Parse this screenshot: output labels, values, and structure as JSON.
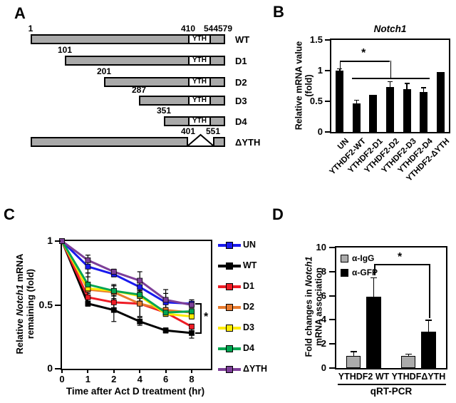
{
  "panel_labels": {
    "a": "A",
    "b": "B",
    "c": "C",
    "d": "D"
  },
  "panel_a": {
    "yth_label": "YTH",
    "bar_color": "#a9a9a9",
    "constructs": [
      {
        "name": "WT",
        "start": 1,
        "end": 579,
        "yth": [
          410,
          544
        ],
        "markers": [
          {
            "t": "1",
            "p": 1
          },
          {
            "t": "410",
            "p": 410
          },
          {
            "t": "544",
            "p": 544
          },
          {
            "t": "579",
            "p": 579
          }
        ]
      },
      {
        "name": "D1",
        "start": 101,
        "end": 579,
        "yth": [
          410,
          544
        ],
        "markers": [
          {
            "t": "101",
            "p": 101
          }
        ]
      },
      {
        "name": "D2",
        "start": 201,
        "end": 579,
        "yth": [
          410,
          544
        ],
        "markers": [
          {
            "t": "201",
            "p": 201
          }
        ]
      },
      {
        "name": "D3",
        "start": 287,
        "end": 579,
        "yth": [
          410,
          544
        ],
        "markers": [
          {
            "t": "287",
            "p": 287
          }
        ]
      },
      {
        "name": "D4",
        "start": 351,
        "end": 579,
        "yth": [
          410,
          544
        ],
        "markers": [
          {
            "t": "351",
            "p": 351
          }
        ]
      },
      {
        "name": "ΔYTH",
        "start": 1,
        "end": 579,
        "deletion": [
          401,
          551
        ],
        "markers": [
          {
            "t": "401",
            "p": 401
          },
          {
            "t": "551",
            "p": 551
          }
        ]
      }
    ]
  },
  "chart_data": [
    {
      "panel": "B",
      "type": "bar",
      "title": "Notch1",
      "ylabel": "Relative mRNA value (fold)",
      "categories": [
        "UN",
        "YTHDF2-WT",
        "YTHDF2-D1",
        "YTHDF2-D2",
        "YTHDF2-D3",
        "YTHDF2-D4",
        "YTHDF2-ΔYTH"
      ],
      "values": [
        1.0,
        0.46,
        0.61,
        0.73,
        0.7,
        0.65,
        0.98
      ],
      "errors": [
        0.03,
        0.06,
        0,
        0.09,
        0.09,
        0.07,
        0
      ],
      "ylim": [
        0,
        1.5
      ],
      "yticks": [
        0,
        0.5,
        1,
        1.5
      ],
      "bar_color": "#000000",
      "grid": false,
      "significance": {
        "symbol": "*",
        "compare": "UN vs YTHDF2 constructs"
      }
    },
    {
      "panel": "C",
      "type": "line",
      "xlabel": "Time after Act D treatment (hr)",
      "ylabel": "Relative Notch1 mRNA remaining (fold)",
      "x": [
        0,
        1,
        2,
        4,
        6,
        8
      ],
      "x_scale": "categorical",
      "ylim": [
        0,
        1
      ],
      "yticks": [
        0,
        0.5,
        1
      ],
      "legend_position": "right",
      "grid": false,
      "significance": {
        "symbol": "*"
      },
      "series": [
        {
          "name": "UN",
          "color": "#1a1aee",
          "values": [
            1,
            0.8,
            0.74,
            0.64,
            0.52,
            0.51
          ],
          "errors": [
            0,
            0.05,
            0.02,
            0.04,
            0.07,
            0.03
          ]
        },
        {
          "name": "WT",
          "color": "#000000",
          "values": [
            1,
            0.51,
            0.46,
            0.37,
            0.3,
            0.28
          ],
          "errors": [
            0,
            0.02,
            0.09,
            0.03,
            0.02,
            0.04
          ]
        },
        {
          "name": "D1",
          "color": "#ee1c25",
          "values": [
            1,
            0.56,
            0.52,
            0.51,
            0.44,
            0.33
          ],
          "errors": [
            0,
            0.05,
            0.05,
            0.1,
            0.02,
            0.02
          ]
        },
        {
          "name": "D2",
          "color": "#e87b2e",
          "values": [
            1,
            0.62,
            0.6,
            0.51,
            0.46,
            0.44
          ],
          "errors": [
            0,
            0.1,
            0.06,
            0.1,
            0.02,
            0.02
          ]
        },
        {
          "name": "D3",
          "color": "#ffec00",
          "values": [
            1,
            0.63,
            0.61,
            0.57,
            0.43,
            0.41
          ],
          "errors": [
            0,
            0.04,
            0.04,
            0.04,
            0.02,
            0.02
          ]
        },
        {
          "name": "D4",
          "color": "#00a651",
          "values": [
            1,
            0.66,
            0.61,
            0.58,
            0.44,
            0.45
          ],
          "errors": [
            0,
            0.09,
            0.04,
            0.03,
            0.02,
            0.02
          ]
        },
        {
          "name": "ΔYTH",
          "color": "#7d3f98",
          "values": [
            1,
            0.85,
            0.76,
            0.69,
            0.54,
            0.5
          ],
          "errors": [
            0,
            0.04,
            0.02,
            0.07,
            0.08,
            0.02
          ]
        }
      ]
    },
    {
      "panel": "D",
      "type": "bar",
      "ylabel": "Fold changes in Notch1 mRNA association",
      "categories": [
        "YTHDF2 WT",
        "YTHDFΔYTH"
      ],
      "ylim": [
        0,
        10
      ],
      "yticks": [
        0,
        2,
        4,
        6,
        8,
        10
      ],
      "group_caption": "qRT-PCR",
      "grid": false,
      "significance": {
        "symbol": "*"
      },
      "series": [
        {
          "name": "α-IgG",
          "color": "#ababab",
          "values": [
            1.0,
            1.0
          ],
          "errors": [
            0.35,
            0.15
          ]
        },
        {
          "name": "α-GFP",
          "color": "#000000",
          "values": [
            5.9,
            3.0
          ],
          "errors": [
            1.6,
            0.95
          ]
        }
      ]
    }
  ]
}
